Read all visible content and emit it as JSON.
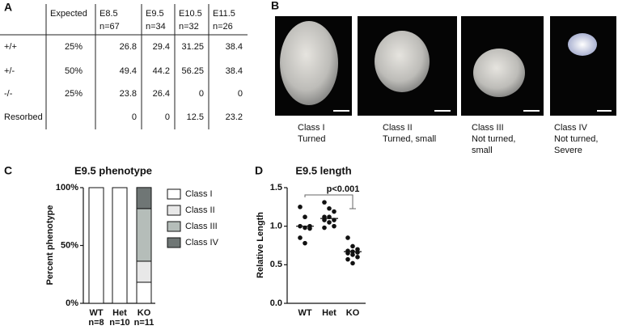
{
  "panel_labels": [
    "A",
    "B",
    "C",
    "D"
  ],
  "table": {
    "columns": [
      {
        "label": "Expected"
      },
      {
        "label": "E8.5",
        "n": "n=67"
      },
      {
        "label": "E9.5",
        "n": "n=34"
      },
      {
        "label": "E10.5",
        "n": "n=32"
      },
      {
        "label": "E11.5",
        "n": "n=26"
      }
    ],
    "rows": [
      [
        "+/+",
        "25%",
        26.8,
        29.4,
        31.25,
        38.4
      ],
      [
        "+/-",
        "50%",
        49.4,
        44.2,
        56.25,
        38.4
      ],
      [
        "-/-",
        "25%",
        23.8,
        26.4,
        0,
        0
      ],
      [
        "Resorbed",
        null,
        0,
        0,
        12.5,
        23.2
      ]
    ]
  },
  "images": [
    {
      "caption": [
        "Class I",
        "Turned"
      ]
    },
    {
      "caption": [
        "Class II",
        "Turned, small"
      ]
    },
    {
      "caption": [
        "Class III",
        "Not turned,",
        "small"
      ]
    },
    {
      "caption": [
        "Class IV",
        "Not turned,",
        "Severe"
      ]
    }
  ],
  "chart_data": [
    {
      "type": "stacked_bar",
      "title": "E9.5 phenotype",
      "ylabel": "Percent phenotype",
      "categories": [
        "WT",
        "Het",
        "KO"
      ],
      "category_notes": [
        "n=8",
        "n=10",
        "n=11"
      ],
      "series": [
        {
          "name": "Class I",
          "color": "#ffffff",
          "values": [
            100,
            100,
            18.2
          ]
        },
        {
          "name": "Class II",
          "color": "#e8e8e8",
          "values": [
            0,
            0,
            18.2
          ]
        },
        {
          "name": "Class III",
          "color": "#b5bdb9",
          "values": [
            0,
            0,
            45.5
          ]
        },
        {
          "name": "Class IV",
          "color": "#6f7675",
          "values": [
            0,
            0,
            18.2
          ]
        }
      ],
      "ylim": [
        0,
        100
      ],
      "yticks": [
        {
          "value": 0,
          "label": "0%"
        },
        {
          "value": 50,
          "label": "50%"
        },
        {
          "value": 100,
          "label": "100%"
        }
      ],
      "legend": "right"
    },
    {
      "type": "dot",
      "title": "E9.5 length",
      "ylabel": "Relative Length",
      "categories": [
        "WT",
        "Het",
        "KO"
      ],
      "points": [
        [
          1.25,
          1.12,
          1.0,
          1.0,
          0.98,
          0.97,
          0.85,
          0.78
        ],
        [
          1.31,
          1.23,
          1.19,
          1.12,
          1.12,
          1.08,
          1.08,
          1.05,
          1.0,
          0.98
        ],
        [
          0.85,
          0.74,
          0.7,
          0.68,
          0.67,
          0.66,
          0.65,
          0.63,
          0.6,
          0.57,
          0.52
        ]
      ],
      "medians": [
        1.0,
        1.1,
        0.67
      ],
      "color": "#111111",
      "ylim": [
        0,
        1.5
      ],
      "yticks": [
        {
          "value": 0,
          "label": "0.0"
        },
        0.5,
        {
          "value": 1,
          "label": "1.0"
        },
        1.5
      ],
      "annotation": "p<0.001"
    }
  ]
}
